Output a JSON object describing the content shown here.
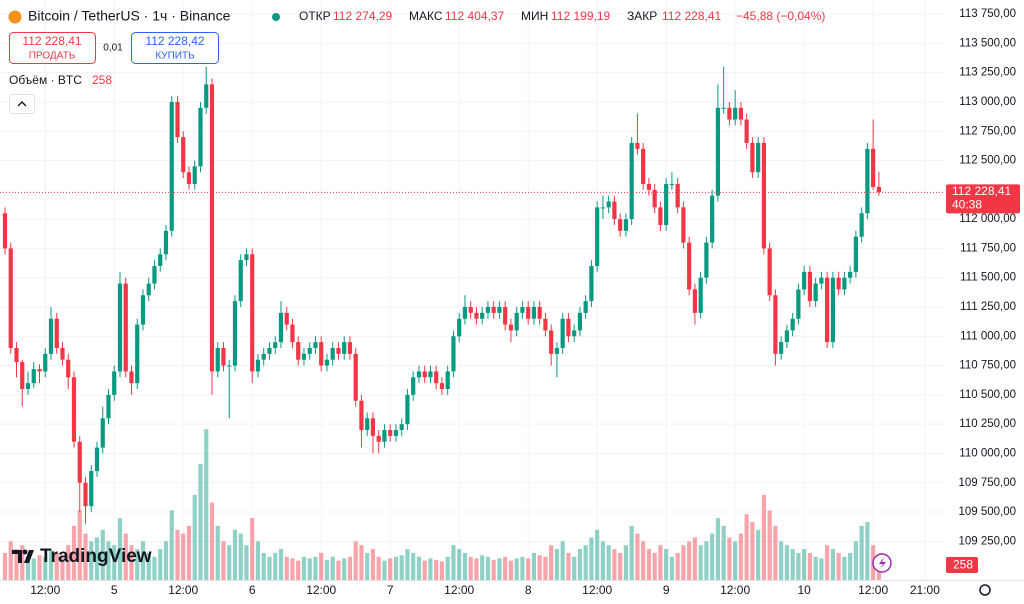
{
  "chart_data": {
    "type": "candlestick",
    "title": "Bitcoin / TetherUS · 1ч · Binance",
    "ohlc": {
      "open_label": "ОТКР",
      "open": {
        "value": 112274.29,
        "label": "112 274,29"
      },
      "high_label": "МАКС",
      "high": {
        "value": 112404.37,
        "label": "112 404,37"
      },
      "low_label": "МИН",
      "low": {
        "value": 112199.19,
        "label": "112 199,19"
      },
      "close_label": "ЗАКР",
      "close": {
        "value": 112228.41,
        "label": "112 228,41"
      },
      "change": {
        "value": -45.88,
        "label": "−45,88 (−0,04%)"
      }
    },
    "sell_label": "ПРОДАТЬ",
    "spread": {
      "value": 0.01,
      "label": "0,01"
    },
    "buy": {
      "label": "КУПИТЬ",
      "price": {
        "value": 112228.42,
        "label": "112 228,42"
      }
    },
    "volume_title": "Объём · BTC",
    "countdown": "40:38",
    "logo": "TradingView",
    "up_color": "#089981",
    "down_color": "#f23645",
    "grid": true,
    "ylim": [
      108920,
      113870
    ],
    "yticks": [
      {
        "value": 113750,
        "label": "113 750,00"
      },
      {
        "value": 113500,
        "label": "113 500,00"
      },
      {
        "value": 113250,
        "label": "113 250,00"
      },
      {
        "value": 113000,
        "label": "113 000,00"
      },
      {
        "value": 112750,
        "label": "112 750,00"
      },
      {
        "value": 112500,
        "label": "112 500,00"
      },
      {
        "value": 112000,
        "label": "112 000,00"
      },
      {
        "value": 111750,
        "label": "111 750,00"
      },
      {
        "value": 111500,
        "label": "111 500,00"
      },
      {
        "value": 111250,
        "label": "111 250,00"
      },
      {
        "value": 111000,
        "label": "111 000,00"
      },
      {
        "value": 110750,
        "label": "110 750,00"
      },
      {
        "value": 110500,
        "label": "110 500,00"
      },
      {
        "value": 110250,
        "label": "110 250,00"
      },
      {
        "value": 110000,
        "label": "110 000,00"
      },
      {
        "value": 109750,
        "label": "109 750,00"
      },
      {
        "value": 109500,
        "label": "109 500,00"
      },
      {
        "value": 109250,
        "label": "109 250,00"
      }
    ],
    "volume_ylim": [
      0,
      7500
    ],
    "xlim": [
      -0.87,
      163.5
    ],
    "xticks": [
      {
        "value": 7,
        "label": "12:00"
      },
      {
        "value": 19,
        "label": "5"
      },
      {
        "value": 31,
        "label": "12:00"
      },
      {
        "value": 43,
        "label": "6"
      },
      {
        "value": 55,
        "label": "12:00"
      },
      {
        "value": 67,
        "label": "7"
      },
      {
        "value": 79,
        "label": "12:00"
      },
      {
        "value": 91,
        "label": "8"
      },
      {
        "value": 103,
        "label": "12:00"
      },
      {
        "value": 115,
        "label": "9"
      },
      {
        "value": 127,
        "label": "12:00"
      },
      {
        "value": 139,
        "label": "10"
      },
      {
        "value": 151,
        "label": "12:00"
      },
      {
        "value": 160,
        "label": "21:00"
      }
    ],
    "candles": [
      [
        112050,
        112100,
        111700,
        111750
      ],
      [
        111750,
        111800,
        110850,
        110900
      ],
      [
        110900,
        110950,
        110650,
        110780
      ],
      [
        110780,
        110800,
        110400,
        110550
      ],
      [
        110550,
        110700,
        110500,
        110600
      ],
      [
        110600,
        110780,
        110560,
        110720
      ],
      [
        110720,
        110760,
        110600,
        110700
      ],
      [
        110700,
        110900,
        110650,
        110850
      ],
      [
        110850,
        111250,
        110800,
        111150
      ],
      [
        111150,
        111200,
        110850,
        110900
      ],
      [
        110900,
        110950,
        110750,
        110800
      ],
      [
        110800,
        110850,
        110550,
        110650
      ],
      [
        110650,
        110700,
        110050,
        110100
      ],
      [
        110100,
        110150,
        109500,
        109750
      ],
      [
        109750,
        109800,
        109400,
        109550
      ],
      [
        109550,
        109900,
        109500,
        109850
      ],
      [
        109850,
        110100,
        109800,
        110050
      ],
      [
        110050,
        110400,
        110000,
        110300
      ],
      [
        110300,
        110550,
        110250,
        110500
      ],
      [
        110500,
        110750,
        110450,
        110700
      ],
      [
        110700,
        111550,
        110650,
        111450
      ],
      [
        111450,
        111500,
        110650,
        110700
      ],
      [
        110700,
        110750,
        110500,
        110600
      ],
      [
        110600,
        111150,
        110550,
        111100
      ],
      [
        111100,
        111400,
        111050,
        111350
      ],
      [
        111350,
        111500,
        111300,
        111450
      ],
      [
        111450,
        111650,
        111400,
        111600
      ],
      [
        111600,
        111750,
        111550,
        111700
      ],
      [
        111700,
        111950,
        111650,
        111900
      ],
      [
        111900,
        113050,
        111850,
        113000
      ],
      [
        113000,
        113050,
        112650,
        112700
      ],
      [
        112700,
        112750,
        112350,
        112400
      ],
      [
        112400,
        112450,
        112250,
        112300
      ],
      [
        112300,
        112500,
        112250,
        112450
      ],
      [
        112450,
        113000,
        112400,
        112950
      ],
      [
        112950,
        113300,
        112900,
        113150
      ],
      [
        113150,
        113200,
        110500,
        110700
      ],
      [
        110700,
        110950,
        110650,
        110900
      ],
      [
        110900,
        110950,
        110700,
        110750
      ],
      [
        110750,
        110800,
        110300,
        110750
      ],
      [
        110750,
        111350,
        110700,
        111300
      ],
      [
        111300,
        111700,
        111250,
        111650
      ],
      [
        111650,
        111750,
        111600,
        111700
      ],
      [
        111700,
        111750,
        110600,
        110700
      ],
      [
        110700,
        110850,
        110650,
        110800
      ],
      [
        110800,
        110900,
        110750,
        110850
      ],
      [
        110850,
        110950,
        110800,
        110900
      ],
      [
        110900,
        111000,
        110850,
        110950
      ],
      [
        110950,
        111300,
        110900,
        111200
      ],
      [
        111200,
        111250,
        111050,
        111100
      ],
      [
        111100,
        111150,
        110900,
        110950
      ],
      [
        110950,
        111000,
        110750,
        110800
      ],
      [
        110800,
        110900,
        110750,
        110850
      ],
      [
        110850,
        110950,
        110800,
        110900
      ],
      [
        110900,
        111000,
        110850,
        110950
      ],
      [
        110950,
        111000,
        110700,
        110750
      ],
      [
        110750,
        110850,
        110700,
        110800
      ],
      [
        110800,
        110950,
        110750,
        110900
      ],
      [
        110900,
        110950,
        110800,
        110850
      ],
      [
        110850,
        111000,
        110800,
        110950
      ],
      [
        110950,
        111000,
        110800,
        110850
      ],
      [
        110850,
        110900,
        110400,
        110450
      ],
      [
        110450,
        110500,
        110050,
        110200
      ],
      [
        110200,
        110350,
        110150,
        110300
      ],
      [
        110300,
        110350,
        110000,
        110150
      ],
      [
        110150,
        110200,
        110000,
        110100
      ],
      [
        110100,
        110250,
        110050,
        110200
      ],
      [
        110200,
        110250,
        110100,
        110150
      ],
      [
        110150,
        110250,
        110100,
        110200
      ],
      [
        110200,
        110300,
        110150,
        110250
      ],
      [
        110250,
        110550,
        110200,
        110500
      ],
      [
        110500,
        110700,
        110450,
        110650
      ],
      [
        110650,
        110750,
        110600,
        110700
      ],
      [
        110700,
        110750,
        110600,
        110650
      ],
      [
        110650,
        110750,
        110600,
        110700
      ],
      [
        110700,
        110750,
        110550,
        110600
      ],
      [
        110600,
        110650,
        110500,
        110550
      ],
      [
        110550,
        110750,
        110500,
        110700
      ],
      [
        110700,
        111050,
        110650,
        111000
      ],
      [
        111000,
        111200,
        110950,
        111150
      ],
      [
        111150,
        111350,
        111100,
        111250
      ],
      [
        111250,
        111300,
        111150,
        111200
      ],
      [
        111200,
        111250,
        111100,
        111150
      ],
      [
        111150,
        111250,
        111100,
        111200
      ],
      [
        111200,
        111300,
        111150,
        111250
      ],
      [
        111250,
        111300,
        111150,
        111200
      ],
      [
        111200,
        111300,
        111150,
        111250
      ],
      [
        111250,
        111300,
        111050,
        111100
      ],
      [
        111100,
        111150,
        110950,
        111050
      ],
      [
        111050,
        111250,
        111000,
        111200
      ],
      [
        111200,
        111300,
        111150,
        111250
      ],
      [
        111250,
        111300,
        111100,
        111150
      ],
      [
        111150,
        111300,
        111100,
        111250
      ],
      [
        111250,
        111300,
        111100,
        111150
      ],
      [
        111150,
        111200,
        111000,
        111050
      ],
      [
        111050,
        111100,
        110750,
        110850
      ],
      [
        110850,
        110950,
        110650,
        110900
      ],
      [
        110900,
        111200,
        110850,
        111150
      ],
      [
        111150,
        111200,
        110950,
        111000
      ],
      [
        111000,
        111100,
        110950,
        111050
      ],
      [
        111050,
        111250,
        111000,
        111200
      ],
      [
        111200,
        111350,
        111150,
        111300
      ],
      [
        111300,
        111650,
        111250,
        111600
      ],
      [
        111600,
        112150,
        111550,
        112100
      ],
      [
        112100,
        112200,
        112000,
        112100
      ],
      [
        112100,
        112200,
        112050,
        112150
      ],
      [
        112150,
        112200,
        111950,
        112000
      ],
      [
        112000,
        112050,
        111850,
        111900
      ],
      [
        111900,
        112050,
        111850,
        112000
      ],
      [
        112000,
        112700,
        111950,
        112650
      ],
      [
        112650,
        112900,
        112550,
        112600
      ],
      [
        112600,
        112650,
        112250,
        112300
      ],
      [
        112300,
        112350,
        112200,
        112250
      ],
      [
        112250,
        112300,
        112050,
        112100
      ],
      [
        112100,
        112150,
        111900,
        111950
      ],
      [
        111950,
        112350,
        111900,
        112300
      ],
      [
        112300,
        112400,
        112250,
        112300
      ],
      [
        112300,
        112350,
        112050,
        112100
      ],
      [
        112100,
        112150,
        111750,
        111800
      ],
      [
        111800,
        111850,
        111350,
        111400
      ],
      [
        111400,
        111450,
        111100,
        111200
      ],
      [
        111200,
        111550,
        111150,
        111500
      ],
      [
        111500,
        111850,
        111450,
        111800
      ],
      [
        111800,
        112250,
        111750,
        112200
      ],
      [
        112200,
        113150,
        112150,
        112950
      ],
      [
        112950,
        113300,
        112900,
        112950
      ],
      [
        112950,
        113000,
        112800,
        112850
      ],
      [
        112850,
        113100,
        112800,
        112950
      ],
      [
        112950,
        113000,
        112800,
        112850
      ],
      [
        112850,
        112900,
        112600,
        112650
      ],
      [
        112650,
        112700,
        112350,
        112400
      ],
      [
        112400,
        112700,
        112350,
        112650
      ],
      [
        112650,
        112700,
        111700,
        111750
      ],
      [
        111750,
        111800,
        111300,
        111350
      ],
      [
        111350,
        111400,
        110750,
        110850
      ],
      [
        110850,
        111000,
        110800,
        110950
      ],
      [
        110950,
        111100,
        110900,
        111050
      ],
      [
        111050,
        111200,
        111000,
        111150
      ],
      [
        111150,
        111450,
        111100,
        111400
      ],
      [
        111400,
        111600,
        111350,
        111550
      ],
      [
        111550,
        111600,
        111250,
        111300
      ],
      [
        111300,
        111500,
        111250,
        111450
      ],
      [
        111450,
        111550,
        111400,
        111500
      ],
      [
        111500,
        111550,
        110900,
        110950
      ],
      [
        110950,
        111550,
        110900,
        111500
      ],
      [
        111500,
        111550,
        111350,
        111400
      ],
      [
        111400,
        111550,
        111350,
        111500
      ],
      [
        111500,
        111600,
        111450,
        111550
      ],
      [
        111550,
        111900,
        111500,
        111850
      ],
      [
        111850,
        112100,
        111800,
        112050
      ],
      [
        112050,
        112650,
        112000,
        112600
      ],
      [
        112600,
        112850,
        112250,
        112274.29
      ],
      [
        112274.29,
        112404.37,
        112199.19,
        112228.41
      ]
    ],
    "volumes": [
      350,
      500,
      400,
      450,
      300,
      280,
      320,
      300,
      380,
      350,
      300,
      450,
      700,
      900,
      600,
      500,
      550,
      650,
      500,
      450,
      800,
      600,
      450,
      400,
      500,
      350,
      300,
      400,
      500,
      900,
      650,
      600,
      700,
      1100,
      1500,
      1950,
      1000,
      700,
      500,
      450,
      650,
      600,
      450,
      800,
      500,
      350,
      300,
      350,
      400,
      300,
      280,
      250,
      300,
      280,
      300,
      350,
      260,
      300,
      250,
      280,
      300,
      500,
      450,
      350,
      400,
      300,
      250,
      280,
      300,
      320,
      400,
      350,
      300,
      250,
      280,
      260,
      240,
      300,
      450,
      400,
      350,
      300,
      280,
      320,
      300,
      260,
      280,
      300,
      250,
      280,
      300,
      280,
      350,
      320,
      300,
      450,
      400,
      500,
      350,
      300,
      400,
      450,
      550,
      650,
      500,
      450,
      400,
      350,
      450,
      700,
      600,
      500,
      400,
      350,
      450,
      400,
      300,
      350,
      450,
      500,
      550,
      450,
      500,
      600,
      800,
      700,
      550,
      500,
      600,
      850,
      750,
      650,
      1100,
      900,
      700,
      500,
      450,
      400,
      350,
      400,
      350,
      300,
      280,
      450,
      400,
      350,
      300,
      350,
      500,
      700,
      750,
      450,
      258
    ]
  }
}
